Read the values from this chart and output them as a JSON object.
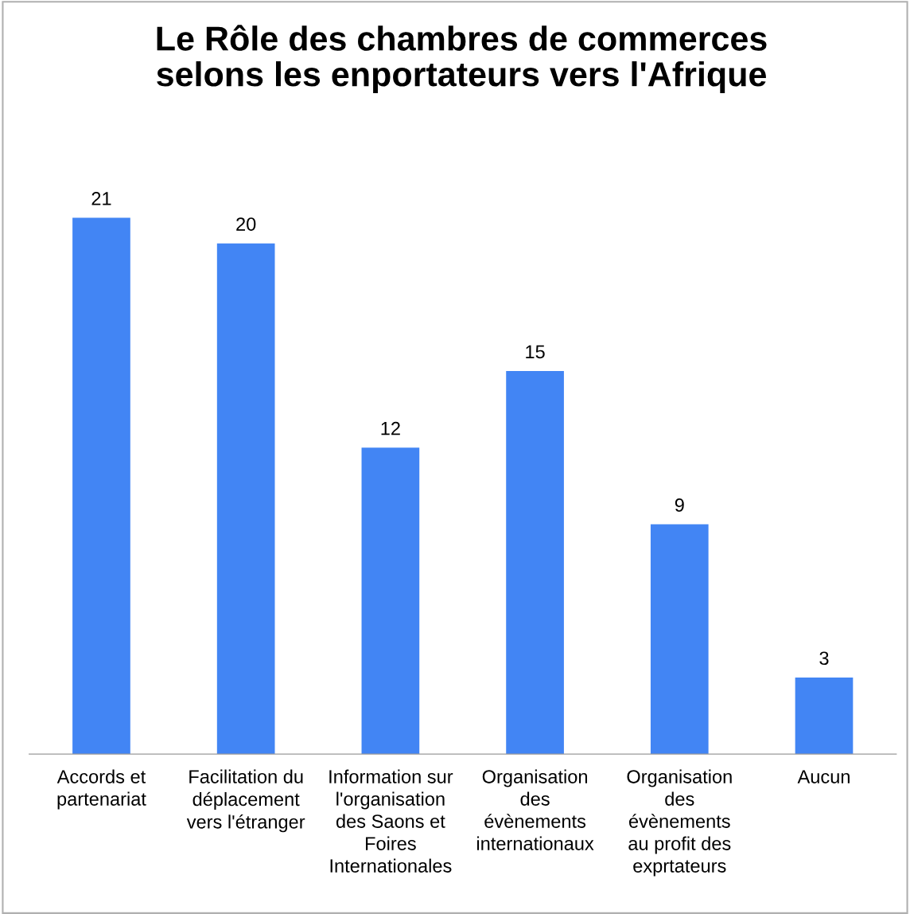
{
  "chart_data": {
    "type": "bar",
    "title": "Le Rôle des chambres de commerces\nselons les enportateurs vers l'Afrique",
    "categories": [
      "Accords et\npartenariat",
      "Facilitation du\ndéplacement\nvers l'étranger",
      "Information sur\nl'organisation\ndes Saons et\nFoires\nInternationales",
      "Organisation\ndes\névènements\ninternationaux",
      "Organisation\ndes\névènements\nau profit des\nexprtateurs",
      "Aucun"
    ],
    "values": [
      21,
      20,
      12,
      15,
      9,
      3
    ],
    "color": "#4285f4",
    "data_labels": true,
    "grid": false,
    "legend": false
  }
}
